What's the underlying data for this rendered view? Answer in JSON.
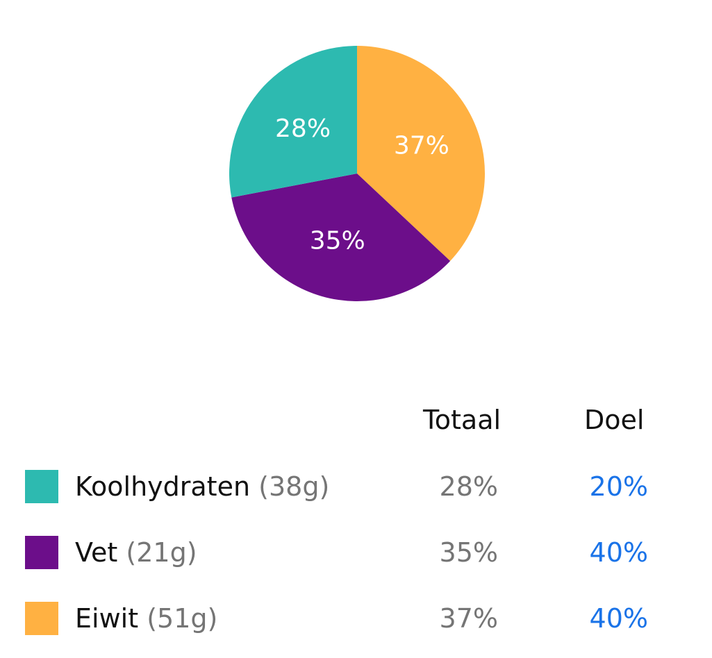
{
  "chart_data": {
    "type": "pie",
    "slices": [
      {
        "label": "Eiwit",
        "value": 37,
        "display": "37%",
        "color": "#FFB142"
      },
      {
        "label": "Vet",
        "value": 35,
        "display": "35%",
        "color": "#6C0E8A"
      },
      {
        "label": "Koolhydraten",
        "value": 28,
        "display": "28%",
        "color": "#2DBAB0"
      }
    ],
    "start_angle_deg": 0,
    "direction": "clockwise-from-top"
  },
  "table": {
    "headers": {
      "total": "Totaal",
      "goal": "Doel"
    },
    "rows": [
      {
        "name": "Koolhydraten",
        "grams": "(38g)",
        "total": "28%",
        "goal": "20%",
        "color": "#2DBAB0"
      },
      {
        "name": "Vet",
        "grams": "(21g)",
        "total": "35%",
        "goal": "40%",
        "color": "#6C0E8A"
      },
      {
        "name": "Eiwit",
        "grams": "(51g)",
        "total": "37%",
        "goal": "40%",
        "color": "#FFB142"
      }
    ]
  }
}
